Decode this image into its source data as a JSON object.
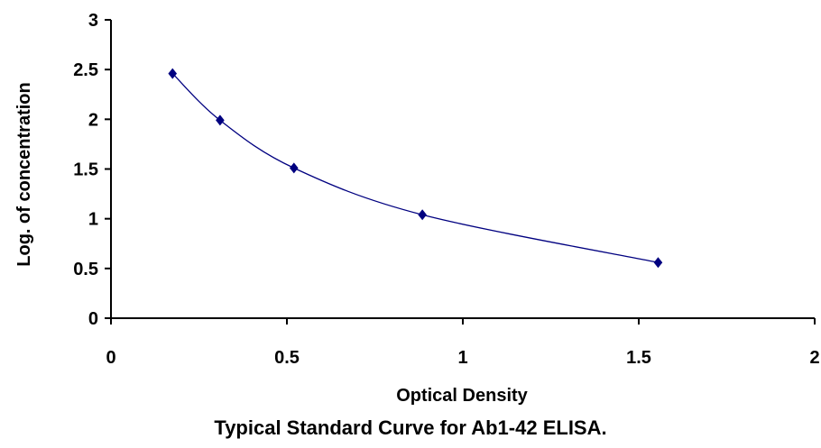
{
  "chart_data": {
    "type": "scatter",
    "title": "",
    "caption": "Typical Standard Curve for Ab1-42 ELISA.",
    "xlabel": "Optical Density",
    "ylabel": "Log. of concentration",
    "xlim": [
      0,
      2
    ],
    "ylim": [
      0,
      3
    ],
    "x_ticks": [
      0,
      0.5,
      1,
      1.5,
      2
    ],
    "x_tick_labels": [
      "0",
      "0.5",
      "1",
      "1.5",
      "2"
    ],
    "y_ticks": [
      0,
      0.5,
      1,
      1.5,
      2,
      2.5,
      3
    ],
    "y_tick_labels": [
      "0",
      "0.5",
      "1",
      "1.5",
      "2",
      "2.5",
      "3"
    ],
    "grid": false,
    "legend": false,
    "series": [
      {
        "x": [
          0.175,
          0.31,
          0.52,
          0.885,
          1.555
        ],
        "y": [
          2.46,
          1.99,
          1.51,
          1.04,
          0.56
        ],
        "marker": "diamond",
        "trendline": "smooth",
        "color": "#000080"
      }
    ]
  }
}
